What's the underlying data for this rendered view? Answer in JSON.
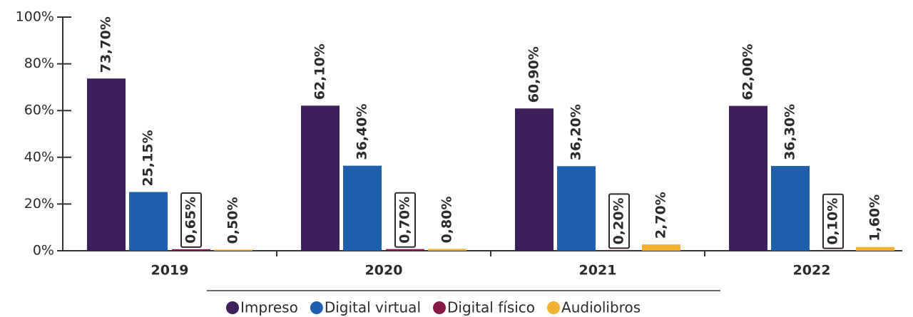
{
  "chart_data": {
    "type": "bar",
    "categories": [
      "2019",
      "2020",
      "2021",
      "2022"
    ],
    "series": [
      {
        "name": "Impreso",
        "color": "#3d1f5c",
        "values": [
          73.7,
          62.1,
          60.9,
          62.0
        ],
        "value_labels": [
          "73,70%",
          "62,10%",
          "60,90%",
          "62,00%"
        ]
      },
      {
        "name": "Digital virtual",
        "color": "#1f5fad",
        "values": [
          25.15,
          36.4,
          36.2,
          36.3
        ],
        "value_labels": [
          "25,15%",
          "36,40%",
          "36,20%",
          "36,30%"
        ]
      },
      {
        "name": "Digital físico",
        "color": "#8a1548",
        "values": [
          0.65,
          0.7,
          0.2,
          0.1
        ],
        "value_labels": [
          "0,65%",
          "0,70%",
          "0,20%",
          "0,10%"
        ],
        "boxed_labels": true
      },
      {
        "name": "Audiolibros",
        "color": "#f0b030",
        "values": [
          0.5,
          0.8,
          2.7,
          1.6
        ],
        "value_labels": [
          "0,50%",
          "0,80%",
          "2,70%",
          "1,60%"
        ]
      }
    ],
    "ylim": [
      0,
      100
    ],
    "yticks": [
      {
        "value": 0,
        "label": "0%"
      },
      {
        "value": 20,
        "label": "20%"
      },
      {
        "value": 40,
        "label": "40%"
      },
      {
        "value": 60,
        "label": "60%"
      },
      {
        "value": 80,
        "label": "80%"
      },
      {
        "value": 100,
        "label": "100%"
      }
    ],
    "legend": "bottom"
  }
}
